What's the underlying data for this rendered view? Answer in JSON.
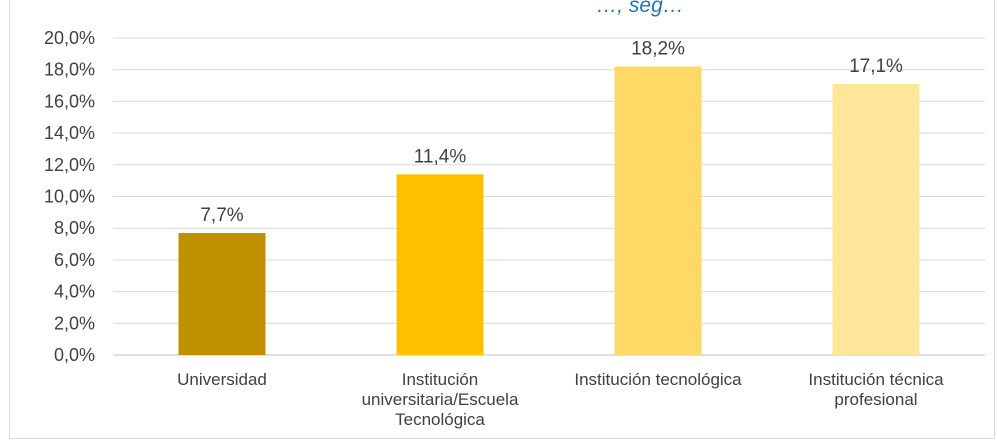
{
  "chart_data": {
    "type": "bar",
    "title_fragment": "…, seg…",
    "categories": [
      "Universidad",
      "Institución universitaria/Escuela Tecnológica",
      "Institución tecnológica",
      "Institución técnica profesional"
    ],
    "category_lines": [
      [
        "Universidad"
      ],
      [
        "Institución",
        "universitaria/Escuela",
        "Tecnológica"
      ],
      [
        "Institución tecnológica"
      ],
      [
        "Institución técnica",
        "profesional"
      ]
    ],
    "values": [
      7.7,
      11.4,
      18.2,
      17.1
    ],
    "value_labels": [
      "7,7%",
      "11,4%",
      "18,2%",
      "17,1%"
    ],
    "bar_colors": [
      "#bf9000",
      "#ffc000",
      "#ffd966",
      "#ffe699"
    ],
    "ylim": [
      0,
      20
    ],
    "y_ticks": [
      0,
      2,
      4,
      6,
      8,
      10,
      12,
      14,
      16,
      18,
      20
    ],
    "y_tick_labels": [
      "0,0%",
      "2,0%",
      "4,0%",
      "6,0%",
      "8,0%",
      "10,0%",
      "12,0%",
      "14,0%",
      "16,0%",
      "18,0%",
      "20,0%"
    ],
    "grid": true,
    "legend": "none",
    "xlabel": "",
    "ylabel": ""
  }
}
